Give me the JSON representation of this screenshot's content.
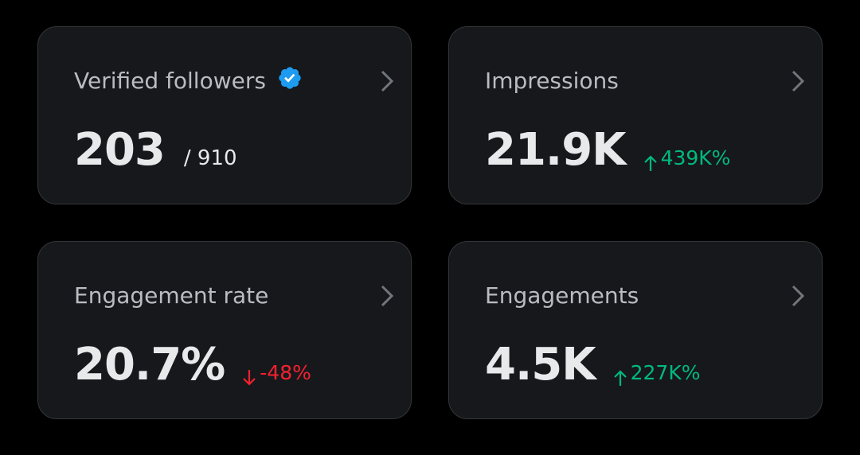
{
  "cards": [
    {
      "title": "Verified followers",
      "verified": true,
      "value": "203",
      "sub": "/ 910"
    },
    {
      "title": "Impressions",
      "value": "21.9K",
      "change": "439K%",
      "trend": "up"
    },
    {
      "title": "Engagement rate",
      "value": "20.7%",
      "change": "-48%",
      "trend": "down"
    },
    {
      "title": "Engagements",
      "value": "4.5K",
      "change": "227K%",
      "trend": "up"
    }
  ]
}
